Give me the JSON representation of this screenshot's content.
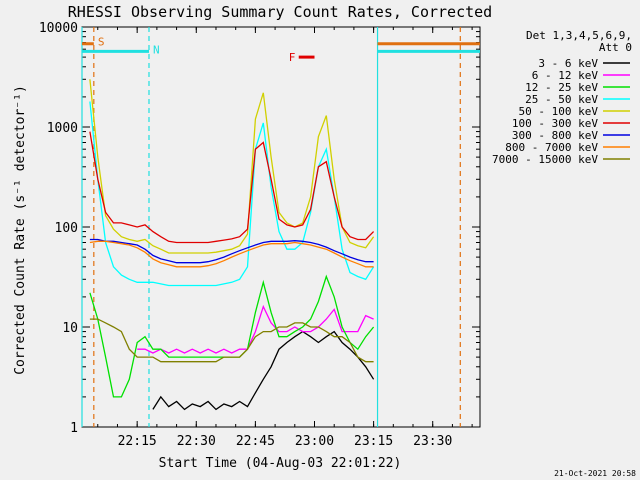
{
  "chart_data": {
    "type": "line",
    "title": "RHESSI Observing Summary Count Rates, Corrected",
    "xlabel": "Start Time (04-Aug-03 22:01:22)",
    "ylabel": "Corrected Count Rate (s⁻¹ detector⁻¹)",
    "yscale": "log",
    "ylim": [
      1,
      10000
    ],
    "xlim_minutes": [
      0,
      101
    ],
    "x_ticks": [
      {
        "label": "22:15",
        "t": 14
      },
      {
        "label": "22:30",
        "t": 29
      },
      {
        "label": "22:45",
        "t": 44
      },
      {
        "label": "23:00",
        "t": 59
      },
      {
        "label": "23:15",
        "t": 74
      },
      {
        "label": "23:30",
        "t": 89
      }
    ],
    "y_ticks": [
      {
        "label": "1",
        "v": 1
      },
      {
        "label": "10",
        "v": 10
      },
      {
        "label": "100",
        "v": 100
      },
      {
        "label": "1000",
        "v": 1000
      },
      {
        "label": "10000",
        "v": 10000
      }
    ],
    "legend_header": [
      "Det 1,3,4,5,6,9,",
      "Att 0"
    ],
    "legend_placement": "right",
    "timestamp": "21-Oct-2021 20:58",
    "markers": [
      {
        "label": "S",
        "color": "#e07010",
        "line_t": 3,
        "bar_from": 0,
        "bar_to": 3,
        "bar_v": 6800
      },
      {
        "label": "N",
        "color": "#20e0e0",
        "line_t": 17,
        "bar_from": 0,
        "bar_to": 17,
        "bar_v": 5700
      },
      {
        "label": "F",
        "color": "#e00000",
        "bar_from": 55,
        "bar_to": 59,
        "bar_v": 5000
      }
    ],
    "right_bars": [
      {
        "color": "#e07010",
        "from": 75,
        "to": 101,
        "v": 6800
      },
      {
        "color": "#20e0e0",
        "from": 75,
        "to": 101,
        "v": 5700
      }
    ],
    "vlines": [
      {
        "t": 0,
        "color": "#20e0e0",
        "style": "solid"
      },
      {
        "t": 75,
        "color": "#20e0e0",
        "style": "solid"
      },
      {
        "t": 96,
        "color": "#e07010",
        "style": "dashed"
      }
    ],
    "x": [
      2,
      4,
      6,
      8,
      10,
      12,
      14,
      16,
      18,
      20,
      22,
      24,
      26,
      28,
      30,
      32,
      34,
      36,
      38,
      40,
      42,
      44,
      46,
      48,
      50,
      52,
      54,
      56,
      58,
      60,
      62,
      64,
      66,
      68,
      70,
      72,
      74
    ],
    "series": [
      {
        "name": "3 - 6 keV",
        "color": "#000000",
        "values": [
          null,
          null,
          null,
          null,
          null,
          null,
          null,
          null,
          1.5,
          2.0,
          1.6,
          1.8,
          1.5,
          1.7,
          1.6,
          1.8,
          1.5,
          1.7,
          1.6,
          1.8,
          1.6,
          2.2,
          3,
          4,
          6,
          7,
          8,
          9,
          8,
          7,
          8,
          9,
          7,
          6,
          5,
          4,
          3
        ]
      },
      {
        "name": "6 - 12 keV",
        "color": "#ff00ff",
        "values": [
          null,
          null,
          null,
          null,
          null,
          null,
          6,
          6,
          5.5,
          6,
          5.5,
          6,
          5.5,
          6,
          5.5,
          6,
          5.5,
          6,
          5.5,
          6,
          6,
          9,
          16,
          11,
          9,
          9,
          10,
          9,
          9,
          10,
          12,
          15,
          9,
          9,
          9,
          13,
          12
        ]
      },
      {
        "name": "12 - 25 keV",
        "color": "#00e000",
        "values": [
          22,
          12,
          5,
          2,
          2,
          3,
          7,
          8,
          6,
          6,
          5,
          5,
          5,
          5,
          5,
          5,
          5,
          5,
          5,
          5,
          6,
          14,
          28,
          14,
          8,
          8,
          9,
          10,
          12,
          18,
          32,
          20,
          10,
          7,
          6,
          8,
          10
        ]
      },
      {
        "name": "25 - 50 keV",
        "color": "#00ffff",
        "values": [
          1800,
          300,
          70,
          40,
          33,
          30,
          28,
          28,
          28,
          27,
          26,
          26,
          26,
          26,
          26,
          26,
          26,
          27,
          28,
          30,
          40,
          600,
          1100,
          250,
          90,
          60,
          60,
          70,
          140,
          400,
          600,
          200,
          60,
          35,
          32,
          30,
          40
        ]
      },
      {
        "name": "50 - 100 keV",
        "color": "#d0d000",
        "values": [
          3000,
          500,
          130,
          95,
          80,
          75,
          72,
          75,
          65,
          60,
          55,
          55,
          55,
          55,
          55,
          55,
          56,
          58,
          60,
          65,
          85,
          1200,
          2200,
          500,
          140,
          110,
          100,
          110,
          200,
          800,
          1300,
          300,
          100,
          70,
          65,
          62,
          80
        ]
      },
      {
        "name": "100 - 300 keV",
        "color": "#e00000",
        "values": [
          900,
          300,
          140,
          110,
          110,
          105,
          100,
          105,
          90,
          80,
          72,
          70,
          70,
          70,
          70,
          70,
          72,
          74,
          76,
          80,
          95,
          600,
          700,
          300,
          120,
          105,
          100,
          105,
          150,
          400,
          450,
          200,
          100,
          80,
          75,
          75,
          90
        ]
      },
      {
        "name": "300 - 800 keV",
        "color": "#0000e0",
        "values": [
          75,
          75,
          72,
          72,
          70,
          68,
          66,
          60,
          52,
          48,
          46,
          44,
          44,
          44,
          44,
          45,
          47,
          50,
          54,
          58,
          62,
          66,
          70,
          72,
          72,
          72,
          73,
          72,
          70,
          67,
          63,
          58,
          54,
          50,
          47,
          45,
          45
        ]
      },
      {
        "name": "800 - 7000 keV",
        "color": "#ff7f00",
        "values": [
          70,
          72,
          72,
          70,
          68,
          66,
          62,
          56,
          48,
          44,
          42,
          40,
          40,
          40,
          40,
          41,
          43,
          46,
          50,
          54,
          58,
          62,
          66,
          68,
          68,
          68,
          70,
          68,
          66,
          63,
          60,
          55,
          50,
          46,
          43,
          40,
          40
        ]
      },
      {
        "name": "7000 - 15000 keV",
        "color": "#808000",
        "values": [
          12,
          12,
          11,
          10,
          9,
          6,
          5,
          5,
          5,
          4.5,
          4.5,
          4.5,
          4.5,
          4.5,
          4.5,
          4.5,
          4.5,
          5,
          5,
          5,
          6,
          8,
          9,
          9,
          10,
          10,
          11,
          11,
          10,
          10,
          9,
          8,
          8,
          7,
          5,
          4.5,
          4.5
        ]
      }
    ]
  }
}
